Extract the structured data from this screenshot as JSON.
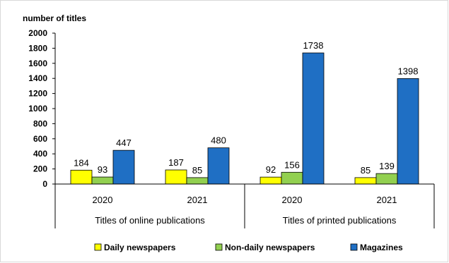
{
  "chart_data": {
    "type": "bar",
    "ylabel": "number of titles",
    "ylim": [
      0,
      2000
    ],
    "yticks": [
      0,
      200,
      400,
      600,
      800,
      1000,
      1200,
      1400,
      1600,
      1800,
      2000
    ],
    "grid": false,
    "legend_position": "bottom",
    "groups": [
      {
        "label": "Titles of online publications",
        "categories": [
          "2020",
          "2021"
        ]
      },
      {
        "label": "Titles of printed publications",
        "categories": [
          "2020",
          "2021"
        ]
      }
    ],
    "series": [
      {
        "name": "Daily newspapers",
        "color": "#FFFF00",
        "values": [
          184,
          187,
          92,
          85
        ]
      },
      {
        "name": "Non-daily newspapers",
        "color": "#92D050",
        "values": [
          93,
          85,
          156,
          139
        ]
      },
      {
        "name": "Magazines",
        "color": "#1F6FC4",
        "values": [
          447,
          480,
          1738,
          1398
        ]
      }
    ]
  }
}
